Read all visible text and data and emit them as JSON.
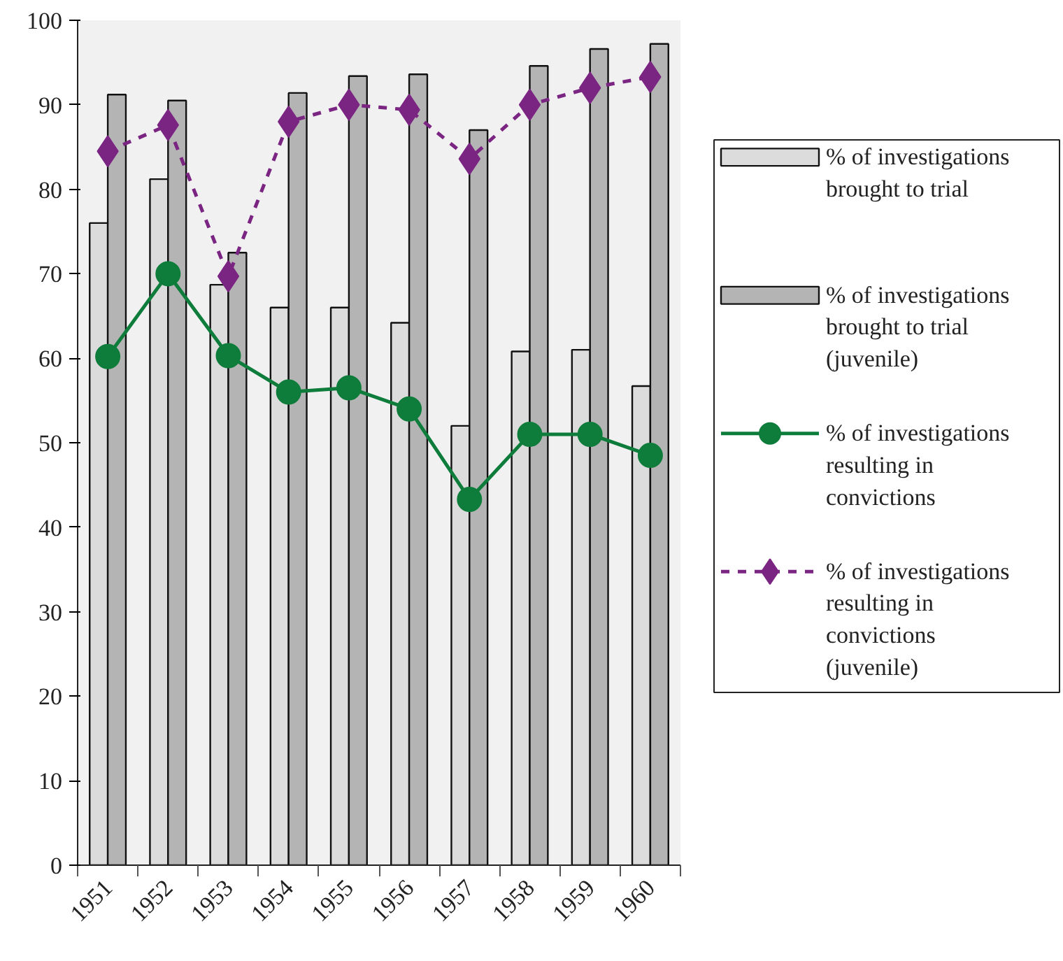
{
  "chart_data": {
    "type": "bar",
    "categories": [
      "1951",
      "1952",
      "1953",
      "1954",
      "1955",
      "1956",
      "1957",
      "1958",
      "1959",
      "1960"
    ],
    "series": [
      {
        "name": "% of investigations brought to trial",
        "color": "#dcdcdc",
        "values": [
          76,
          81.2,
          68.7,
          66,
          66,
          64.2,
          52,
          60.8,
          61,
          56.7
        ]
      },
      {
        "name": "% of investigations brought to trial (juvenile)",
        "color": "#b4b4b4",
        "values": [
          91.2,
          90.5,
          72.5,
          91.4,
          93.4,
          93.6,
          87,
          94.6,
          96.6,
          97.2
        ]
      },
      {
        "name": "% of investigations resulting in convictions",
        "type": "line",
        "color": "#0e7c3a",
        "marker": "circle",
        "line_style": "solid",
        "values": [
          60.2,
          70,
          60.3,
          56,
          56.5,
          54,
          43.3,
          51,
          51,
          48.5
        ]
      },
      {
        "name": "% of investigations resulting in convictions (juvenile)",
        "type": "line",
        "color": "#7b2583",
        "marker": "diamond",
        "line_style": "dashed",
        "values": [
          84.5,
          87.6,
          69.7,
          88,
          90,
          89.4,
          83.6,
          90,
          92,
          93.3
        ]
      }
    ],
    "ylim": [
      0,
      100
    ],
    "yticks": [
      0,
      10,
      20,
      30,
      40,
      50,
      60,
      70,
      80,
      90,
      100
    ],
    "grid": false,
    "legend": "right"
  }
}
